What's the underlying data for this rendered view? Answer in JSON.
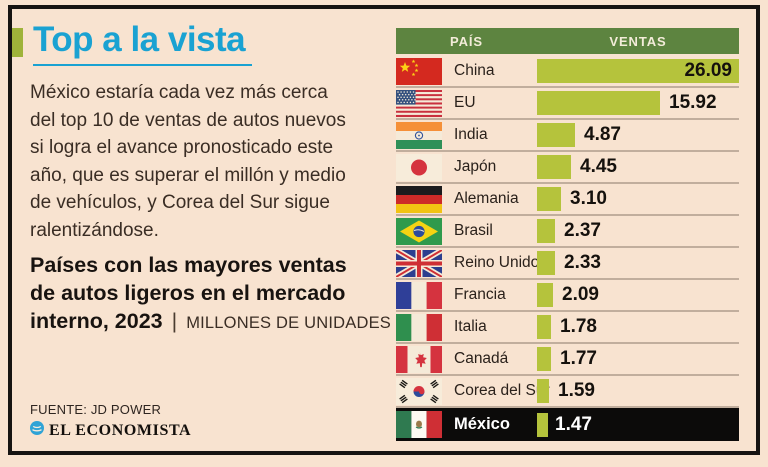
{
  "colors": {
    "background_cream": "#f8e3d0",
    "title_cyan": "#1aa2d2",
    "accent_green": "#9fb33a",
    "bar_green": "#b5c33c",
    "header_olive": "#5d8440",
    "highlight_black": "#0c0b0a",
    "frame_black": "#161412"
  },
  "header": {
    "title": "Top a la vista"
  },
  "intro": {
    "text": "México estaría cada vez más cerca\ndel top 10 de ventas de autos nuevos\nsi logra el avance pronosticado este\naño, que es superar el millón y medio\nde vehículos, y Corea del Sur sigue\nralentizándose."
  },
  "subtitle": {
    "bold_text": "Países con las mayores ventas\nde autos ligeros en el mercado\ninterno, 2023",
    "separator": "|",
    "unit_label": "MILLONES DE UNIDADES"
  },
  "table": {
    "col_pais": "PAÍS",
    "col_ventas": "VENTAS",
    "max_value": 26.09,
    "rows": [
      {
        "country": "China",
        "value": "26.09",
        "flag": "cn",
        "value_inside": true,
        "highlight": false
      },
      {
        "country": "EU",
        "value": "15.92",
        "flag": "us",
        "value_inside": false,
        "highlight": false
      },
      {
        "country": "India",
        "value": "4.87",
        "flag": "in",
        "value_inside": false,
        "highlight": false
      },
      {
        "country": "Japón",
        "value": "4.45",
        "flag": "jp",
        "value_inside": false,
        "highlight": false
      },
      {
        "country": "Alemania",
        "value": "3.10",
        "flag": "de",
        "value_inside": false,
        "highlight": false
      },
      {
        "country": "Brasil",
        "value": "2.37",
        "flag": "br",
        "value_inside": false,
        "highlight": false
      },
      {
        "country": "Reino Unido",
        "value": "2.33",
        "flag": "gb",
        "value_inside": false,
        "highlight": false
      },
      {
        "country": "Francia",
        "value": "2.09",
        "flag": "fr",
        "value_inside": false,
        "highlight": false
      },
      {
        "country": "Italia",
        "value": "1.78",
        "flag": "it",
        "value_inside": false,
        "highlight": false
      },
      {
        "country": "Canadá",
        "value": "1.77",
        "flag": "ca",
        "value_inside": false,
        "highlight": false
      },
      {
        "country": "Corea del Sur",
        "value": "1.59",
        "flag": "kr",
        "value_inside": false,
        "highlight": false
      },
      {
        "country": "México",
        "value": "1.47",
        "flag": "mx",
        "value_inside": false,
        "highlight": true
      }
    ]
  },
  "footer": {
    "source": "FUENTE: JD POWER",
    "brand": "EL ECONOMISTA"
  },
  "chart_data": {
    "type": "bar",
    "orientation": "horizontal",
    "title": "Países con las mayores ventas de autos ligeros en el mercado interno, 2023",
    "unit": "Millones de unidades",
    "categories": [
      "China",
      "EU",
      "India",
      "Japón",
      "Alemania",
      "Brasil",
      "Reino Unido",
      "Francia",
      "Italia",
      "Canadá",
      "Corea del Sur",
      "México"
    ],
    "values": [
      26.09,
      15.92,
      4.87,
      4.45,
      3.1,
      2.37,
      2.33,
      2.09,
      1.78,
      1.77,
      1.59,
      1.47
    ],
    "xlim": [
      0,
      26.09
    ],
    "grid": false,
    "highlight_category": "México",
    "source": "JD Power"
  }
}
